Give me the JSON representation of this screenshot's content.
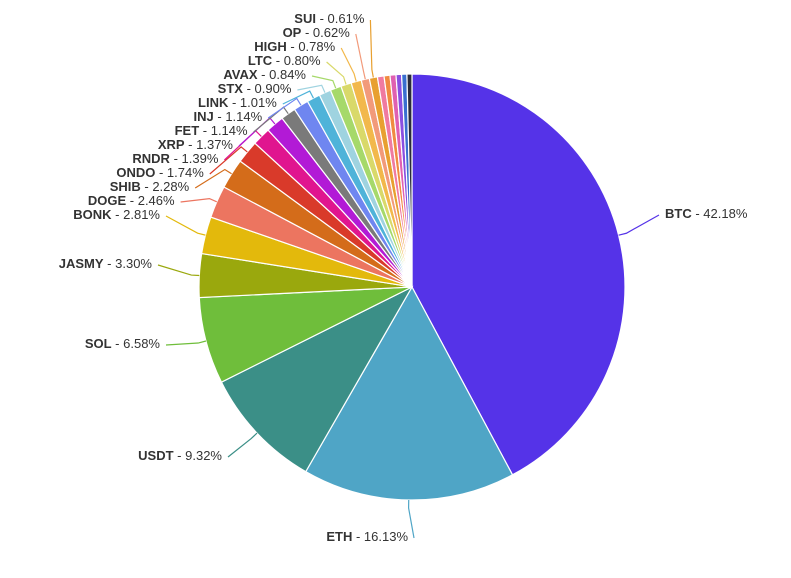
{
  "chart_data": {
    "type": "pie",
    "label_separator": " - ",
    "categories": [
      "BTC",
      "ETH",
      "USDT",
      "SOL",
      "JASMY",
      "BONK",
      "DOGE",
      "SHIB",
      "ONDO",
      "RNDR",
      "XRP",
      "FET",
      "INJ",
      "LINK",
      "STX",
      "AVAX",
      "LTC",
      "HIGH",
      "OP",
      "SUI",
      null,
      null,
      null,
      null,
      null,
      null
    ],
    "values": [
      42.18,
      16.13,
      9.32,
      6.58,
      3.3,
      2.81,
      2.46,
      2.28,
      1.74,
      1.39,
      1.37,
      1.14,
      1.14,
      1.01,
      0.9,
      0.84,
      0.8,
      0.78,
      0.62,
      0.61,
      0.5,
      0.45,
      0.45,
      0.42,
      0.4,
      0.38
    ],
    "value_labels": [
      "42.18%",
      "16.13%",
      "9.32%",
      "6.58%",
      "3.30%",
      "2.81%",
      "2.46%",
      "2.28%",
      "1.74%",
      "1.39%",
      "1.37%",
      "1.14%",
      "1.14%",
      "1.01%",
      "0.90%",
      "0.84%",
      "0.80%",
      "0.78%",
      "0.62%",
      "0.61%",
      null,
      null,
      null,
      null,
      null,
      null
    ],
    "colors": [
      "#5533e8",
      "#4fa5c6",
      "#3b8f87",
      "#6fbe3b",
      "#9aa80d",
      "#e3b90c",
      "#ec7560",
      "#d46c1a",
      "#d93a2a",
      "#e0158f",
      "#b21ad6",
      "#7a7a7a",
      "#6f86f0",
      "#4fb3d9",
      "#9fd3e0",
      "#a6d96a",
      "#d9d96a",
      "#f2b84b",
      "#f29a7a",
      "#e8a030",
      "#f07aa0",
      "#f08a40",
      "#e060b0",
      "#8a4fe0",
      "#3a6fd0",
      "#2a2a3a"
    ]
  }
}
